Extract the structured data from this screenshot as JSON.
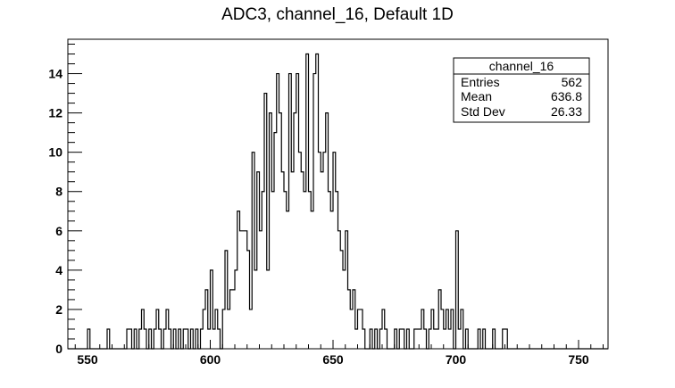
{
  "chart_data": {
    "type": "histogram",
    "title": "ADC3, channel_16, Default 1D",
    "xlabel": "",
    "ylabel": "",
    "xlim": [
      542,
      762
    ],
    "ylim": [
      0,
      15.75
    ],
    "x_ticks": [
      550,
      600,
      650,
      700,
      750
    ],
    "y_ticks": [
      0,
      2,
      4,
      6,
      8,
      10,
      12,
      14
    ],
    "bin_width": 1,
    "grid": false,
    "legend": "none",
    "series": [
      {
        "values": [
          {
            "x": 550,
            "y": 1
          },
          {
            "x": 558,
            "y": 1
          },
          {
            "x": 566,
            "y": 1
          },
          {
            "x": 567,
            "y": 1
          },
          {
            "x": 568,
            "y": 0
          },
          {
            "x": 569,
            "y": 1
          },
          {
            "x": 571,
            "y": 1
          },
          {
            "x": 572,
            "y": 2
          },
          {
            "x": 573,
            "y": 1
          },
          {
            "x": 575,
            "y": 1
          },
          {
            "x": 577,
            "y": 1
          },
          {
            "x": 578,
            "y": 2
          },
          {
            "x": 579,
            "y": 1
          },
          {
            "x": 581,
            "y": 1
          },
          {
            "x": 582,
            "y": 2
          },
          {
            "x": 583,
            "y": 1
          },
          {
            "x": 585,
            "y": 1
          },
          {
            "x": 587,
            "y": 1
          },
          {
            "x": 589,
            "y": 1
          },
          {
            "x": 590,
            "y": 1
          },
          {
            "x": 592,
            "y": 1
          },
          {
            "x": 594,
            "y": 1
          },
          {
            "x": 596,
            "y": 1
          },
          {
            "x": 597,
            "y": 2
          },
          {
            "x": 598,
            "y": 3
          },
          {
            "x": 599,
            "y": 1
          },
          {
            "x": 600,
            "y": 4
          },
          {
            "x": 601,
            "y": 1
          },
          {
            "x": 602,
            "y": 2
          },
          {
            "x": 603,
            "y": 1
          },
          {
            "x": 605,
            "y": 2
          },
          {
            "x": 606,
            "y": 5
          },
          {
            "x": 607,
            "y": 2
          },
          {
            "x": 608,
            "y": 3
          },
          {
            "x": 609,
            "y": 3
          },
          {
            "x": 610,
            "y": 4
          },
          {
            "x": 611,
            "y": 7
          },
          {
            "x": 612,
            "y": 6
          },
          {
            "x": 613,
            "y": 6
          },
          {
            "x": 614,
            "y": 6
          },
          {
            "x": 615,
            "y": 5
          },
          {
            "x": 616,
            "y": 2
          },
          {
            "x": 617,
            "y": 10
          },
          {
            "x": 618,
            "y": 4
          },
          {
            "x": 619,
            "y": 9
          },
          {
            "x": 620,
            "y": 6
          },
          {
            "x": 621,
            "y": 8
          },
          {
            "x": 622,
            "y": 13
          },
          {
            "x": 623,
            "y": 4
          },
          {
            "x": 624,
            "y": 12
          },
          {
            "x": 625,
            "y": 8
          },
          {
            "x": 626,
            "y": 11
          },
          {
            "x": 627,
            "y": 14
          },
          {
            "x": 628,
            "y": 12
          },
          {
            "x": 629,
            "y": 9
          },
          {
            "x": 630,
            "y": 8
          },
          {
            "x": 631,
            "y": 7
          },
          {
            "x": 632,
            "y": 14
          },
          {
            "x": 633,
            "y": 9
          },
          {
            "x": 634,
            "y": 12
          },
          {
            "x": 635,
            "y": 14
          },
          {
            "x": 636,
            "y": 10
          },
          {
            "x": 637,
            "y": 9
          },
          {
            "x": 638,
            "y": 8
          },
          {
            "x": 639,
            "y": 15
          },
          {
            "x": 640,
            "y": 8
          },
          {
            "x": 641,
            "y": 7
          },
          {
            "x": 642,
            "y": 14
          },
          {
            "x": 643,
            "y": 15
          },
          {
            "x": 644,
            "y": 10
          },
          {
            "x": 645,
            "y": 9
          },
          {
            "x": 646,
            "y": 10
          },
          {
            "x": 647,
            "y": 12
          },
          {
            "x": 648,
            "y": 8
          },
          {
            "x": 649,
            "y": 7
          },
          {
            "x": 650,
            "y": 10
          },
          {
            "x": 651,
            "y": 8
          },
          {
            "x": 652,
            "y": 6
          },
          {
            "x": 653,
            "y": 5
          },
          {
            "x": 654,
            "y": 4
          },
          {
            "x": 655,
            "y": 6
          },
          {
            "x": 656,
            "y": 3
          },
          {
            "x": 657,
            "y": 2
          },
          {
            "x": 658,
            "y": 3
          },
          {
            "x": 659,
            "y": 1
          },
          {
            "x": 660,
            "y": 2
          },
          {
            "x": 661,
            "y": 2
          },
          {
            "x": 662,
            "y": 1
          },
          {
            "x": 665,
            "y": 1
          },
          {
            "x": 667,
            "y": 1
          },
          {
            "x": 669,
            "y": 1
          },
          {
            "x": 670,
            "y": 2
          },
          {
            "x": 671,
            "y": 1
          },
          {
            "x": 675,
            "y": 1
          },
          {
            "x": 677,
            "y": 1
          },
          {
            "x": 678,
            "y": 1
          },
          {
            "x": 680,
            "y": 1
          },
          {
            "x": 683,
            "y": 1
          },
          {
            "x": 684,
            "y": 1
          },
          {
            "x": 685,
            "y": 1
          },
          {
            "x": 686,
            "y": 2
          },
          {
            "x": 687,
            "y": 1
          },
          {
            "x": 689,
            "y": 1
          },
          {
            "x": 690,
            "y": 2
          },
          {
            "x": 691,
            "y": 1
          },
          {
            "x": 692,
            "y": 1
          },
          {
            "x": 693,
            "y": 3
          },
          {
            "x": 694,
            "y": 2
          },
          {
            "x": 695,
            "y": 1
          },
          {
            "x": 696,
            "y": 2
          },
          {
            "x": 697,
            "y": 1
          },
          {
            "x": 698,
            "y": 2
          },
          {
            "x": 700,
            "y": 6
          },
          {
            "x": 701,
            "y": 1
          },
          {
            "x": 702,
            "y": 2
          },
          {
            "x": 704,
            "y": 1
          },
          {
            "x": 709,
            "y": 1
          },
          {
            "x": 711,
            "y": 1
          },
          {
            "x": 715,
            "y": 1
          },
          {
            "x": 719,
            "y": 1
          },
          {
            "x": 720,
            "y": 1
          }
        ]
      }
    ],
    "stats_box": {
      "name": "channel_16",
      "rows": [
        {
          "label": "Entries",
          "value": "562"
        },
        {
          "label": "Mean",
          "value": "636.8"
        },
        {
          "label": "Std Dev",
          "value": "26.33"
        }
      ]
    }
  }
}
